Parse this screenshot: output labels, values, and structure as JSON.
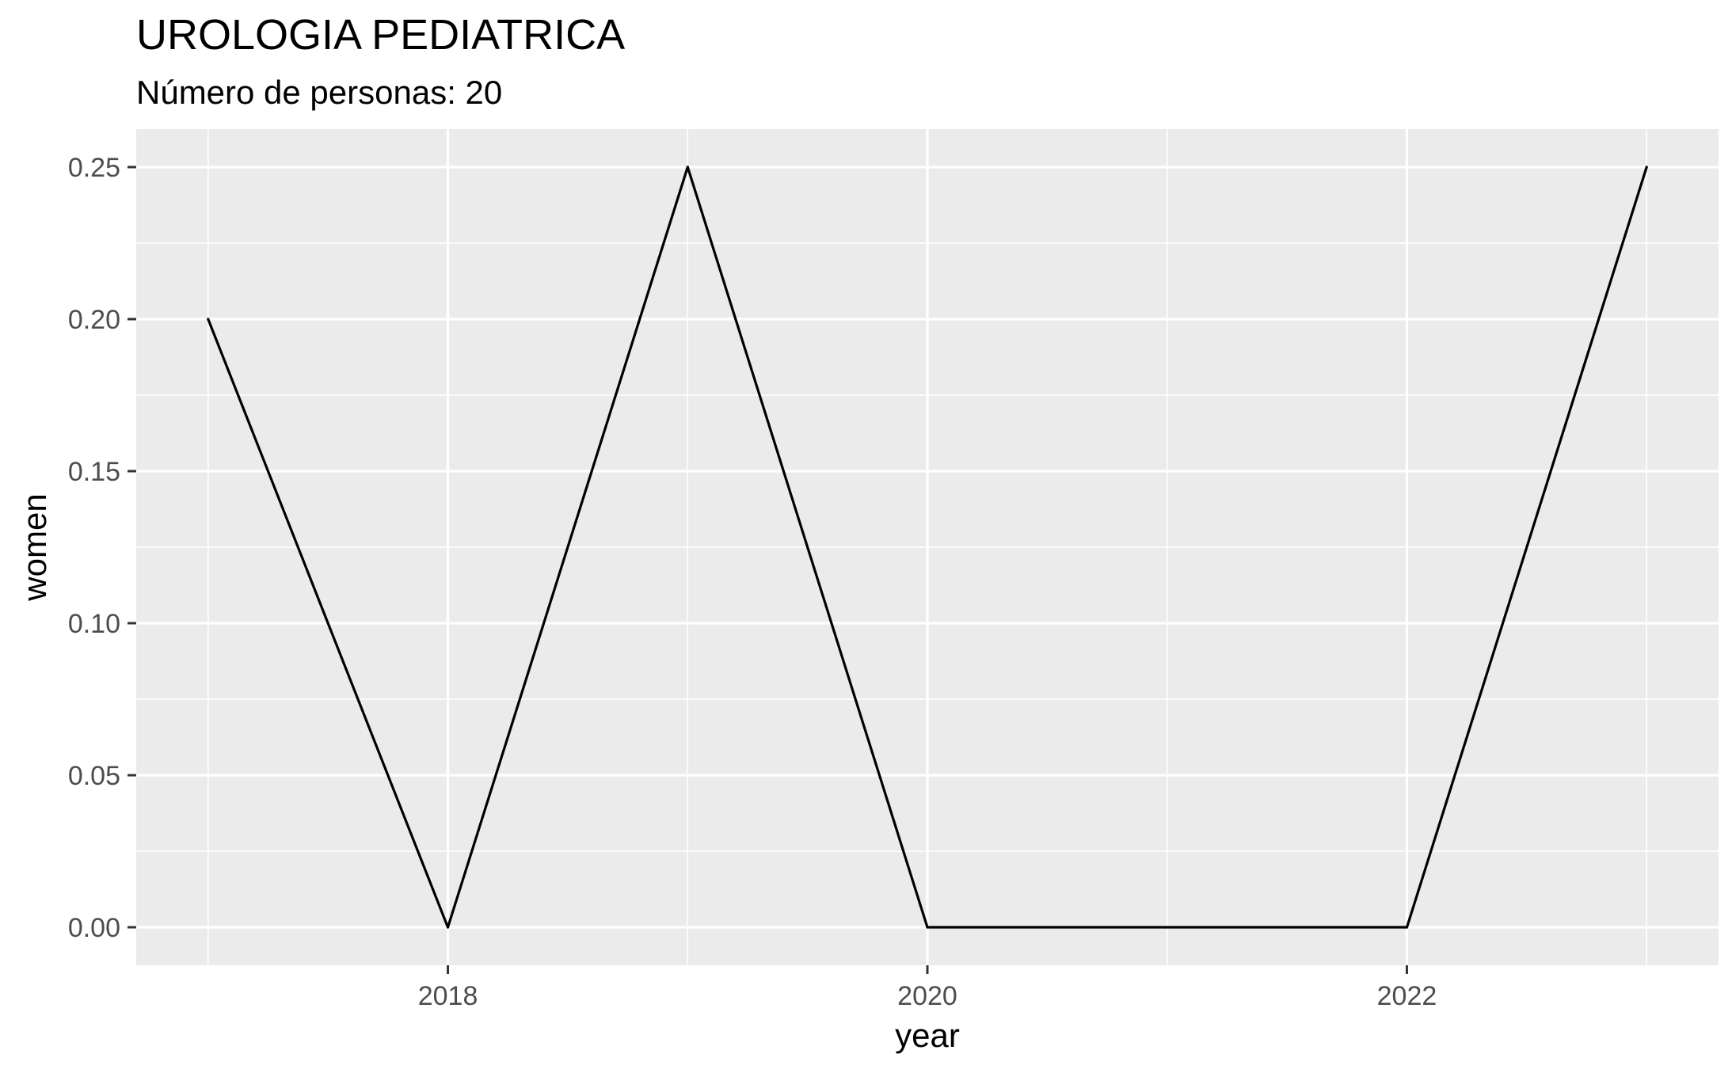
{
  "chart_data": {
    "type": "line",
    "title": "UROLOGIA PEDIATRICA",
    "subtitle": "Número de personas: 20",
    "xlabel": "year",
    "ylabel": "women",
    "x": [
      2017,
      2018,
      2019,
      2020,
      2021,
      2022,
      2023
    ],
    "series": [
      {
        "values": [
          0.2,
          0.0,
          0.25,
          0.0,
          0.0,
          0.0,
          0.25
        ]
      }
    ],
    "xlim": [
      2016.7,
      2023.3
    ],
    "ylim": [
      -0.0125,
      0.2625
    ],
    "x_ticks": [
      2018,
      2020,
      2022
    ],
    "x_tick_labels": [
      "2018",
      "2020",
      "2022"
    ],
    "x_minor_ticks": [
      2017,
      2019,
      2021,
      2023
    ],
    "y_ticks": [
      0.0,
      0.05,
      0.1,
      0.15,
      0.2,
      0.25
    ],
    "y_tick_labels": [
      "0.00",
      "0.05",
      "0.10",
      "0.15",
      "0.20",
      "0.25"
    ],
    "y_minor_ticks": [
      0.025,
      0.075,
      0.125,
      0.175,
      0.225
    ],
    "grid": true,
    "legend": "none",
    "colors": {
      "panel": "#ebebeb",
      "grid": "#ffffff",
      "line": "#000000",
      "tick": "#333333"
    }
  }
}
